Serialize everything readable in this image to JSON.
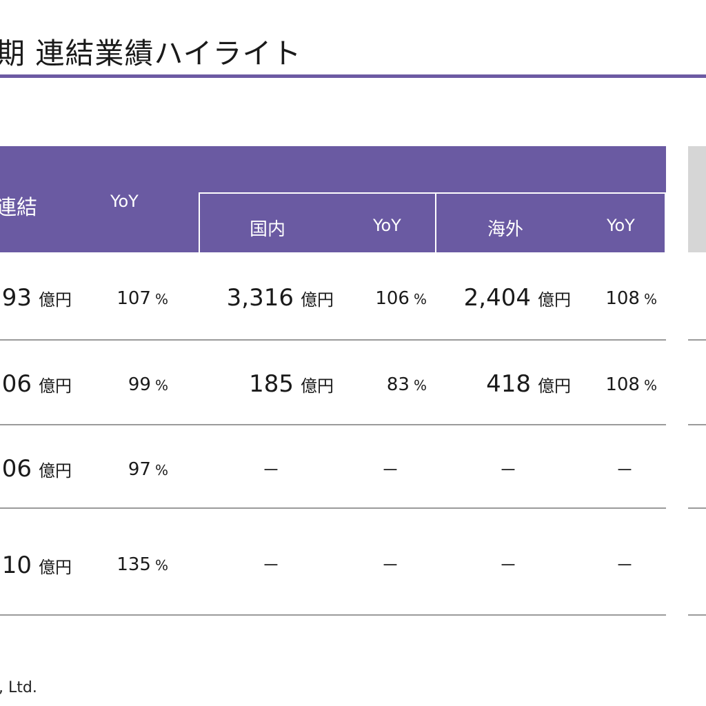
{
  "title": "期 連結業績ハイライト",
  "header": {
    "consolidated": "連結",
    "yoy": "YoY",
    "domestic": "国内",
    "overseas": "海外"
  },
  "unit": "億円",
  "percent": "%",
  "dash": "－",
  "rows": [
    {
      "cons": "93",
      "cons_yoy": "107",
      "dom": "3,316",
      "dom_yoy": "106",
      "ovs": "2,404",
      "ovs_yoy": "108"
    },
    {
      "cons": "06",
      "cons_yoy": "99",
      "dom": "185",
      "dom_yoy": "83",
      "ovs": "418",
      "ovs_yoy": "108"
    },
    {
      "cons": "06",
      "cons_yoy": "97"
    },
    {
      "cons": "10",
      "cons_yoy": "135"
    }
  ],
  "footer": ", Ltd.",
  "colors": {
    "accent": "#6a5aa2",
    "rule": "#9a9a9a",
    "panel": "#d6d6d6"
  }
}
